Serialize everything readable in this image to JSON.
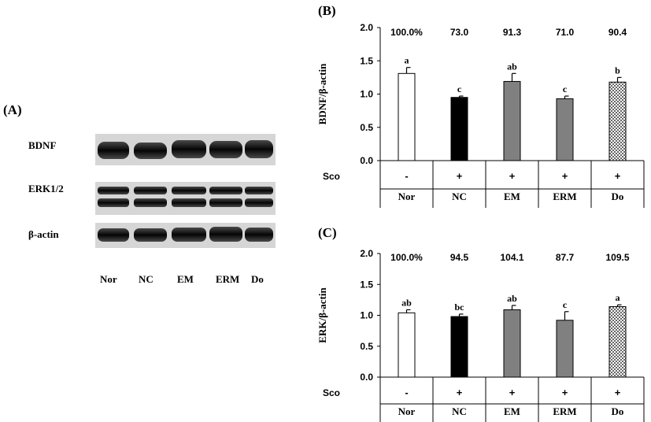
{
  "panel_a": {
    "label": "(A)",
    "bands": [
      {
        "name": "BDNF",
        "style": "single"
      },
      {
        "name": "ERK1/2",
        "style": "double"
      },
      {
        "name": "β-actin",
        "style": "single"
      }
    ],
    "lanes": [
      "Nor",
      "NC",
      "EM",
      "ERM",
      "Do"
    ]
  },
  "chart_data": [
    {
      "panel": "(B)",
      "type": "bar",
      "ylabel": "BDNF/β-actin",
      "ylim": [
        0,
        2
      ],
      "yticks": [
        "0.0",
        "0.5",
        "1.0",
        "1.5",
        "2.0"
      ],
      "categories": [
        "Nor",
        "NC",
        "EM",
        "ERM",
        "Do"
      ],
      "values": [
        1.31,
        0.95,
        1.19,
        0.93,
        1.18
      ],
      "errors": [
        0.09,
        0.02,
        0.12,
        0.04,
        0.07
      ],
      "letters": [
        "a",
        "c",
        "ab",
        "c",
        "b"
      ],
      "percents": [
        "100.0%",
        "73.0",
        "91.3",
        "71.0",
        "90.4"
      ],
      "sco_label": "Sco",
      "sco_signs": [
        "-",
        "+",
        "+",
        "+",
        "+"
      ],
      "fills": [
        "white",
        "black",
        "gray",
        "gray",
        "checker"
      ]
    },
    {
      "panel": "(C)",
      "type": "bar",
      "ylabel": "ERK/β-actin",
      "ylim": [
        0,
        2
      ],
      "yticks": [
        "0.0",
        "0.5",
        "1.0",
        "1.5",
        "2.0"
      ],
      "categories": [
        "Nor",
        "NC",
        "EM",
        "ERM",
        "Do"
      ],
      "values": [
        1.04,
        0.98,
        1.09,
        0.92,
        1.14
      ],
      "errors": [
        0.05,
        0.04,
        0.07,
        0.14,
        0.03
      ],
      "letters": [
        "ab",
        "bc",
        "ab",
        "c",
        "a"
      ],
      "percents": [
        "100.0%",
        "94.5",
        "104.1",
        "87.7",
        "109.5"
      ],
      "sco_label": "Sco",
      "sco_signs": [
        "-",
        "+",
        "+",
        "+",
        "+"
      ],
      "fills": [
        "white",
        "black",
        "gray",
        "gray",
        "checker"
      ]
    }
  ],
  "colors": {
    "black": "#000000",
    "gray": "#808080",
    "white": "#ffffff"
  }
}
